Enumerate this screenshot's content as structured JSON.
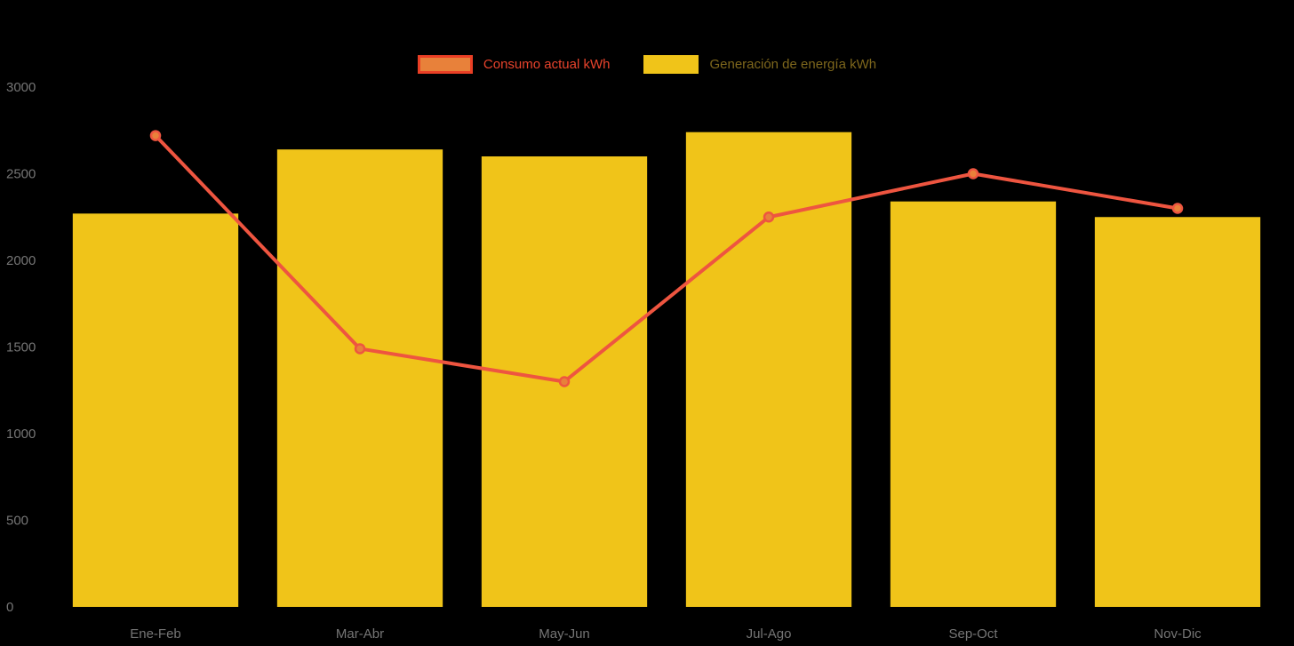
{
  "legend": {
    "items": [
      {
        "label": "Consumo actual kWh",
        "swatch_fill": "#e8813a",
        "swatch_border": "#ea3f25",
        "label_color": "#e8432c"
      },
      {
        "label": "Generación de energía kWh",
        "swatch_fill": "#f0c419",
        "swatch_border": "#f0c419",
        "label_color": "#7e671c"
      }
    ]
  },
  "axis": {
    "tick_color": "#757575",
    "font_size": 15
  },
  "chart_data": {
    "type": "bar",
    "subtype": "bar-line-combo",
    "title": "",
    "xlabel": "",
    "ylabel": "",
    "categories": [
      "Ene-Feb",
      "Mar-Abr",
      "May-Jun",
      "Jul-Ago",
      "Sep-Oct",
      "Nov-Dic"
    ],
    "series": [
      {
        "name": "Consumo actual kWh",
        "type": "line",
        "color": "#ee5540",
        "point_fill": "#e8813a",
        "values": [
          2720,
          1490,
          1300,
          2250,
          2500,
          2300
        ]
      },
      {
        "name": "Generación de energía kWh",
        "type": "bar",
        "color": "#f0c419",
        "values": [
          2270,
          2640,
          2600,
          2740,
          2340,
          2250
        ]
      }
    ],
    "ylim": [
      0,
      3000
    ],
    "yticks": [
      0,
      500,
      1000,
      1500,
      2000,
      2500,
      3000
    ],
    "legend_position": "top",
    "grid": false,
    "background": "#000000"
  }
}
